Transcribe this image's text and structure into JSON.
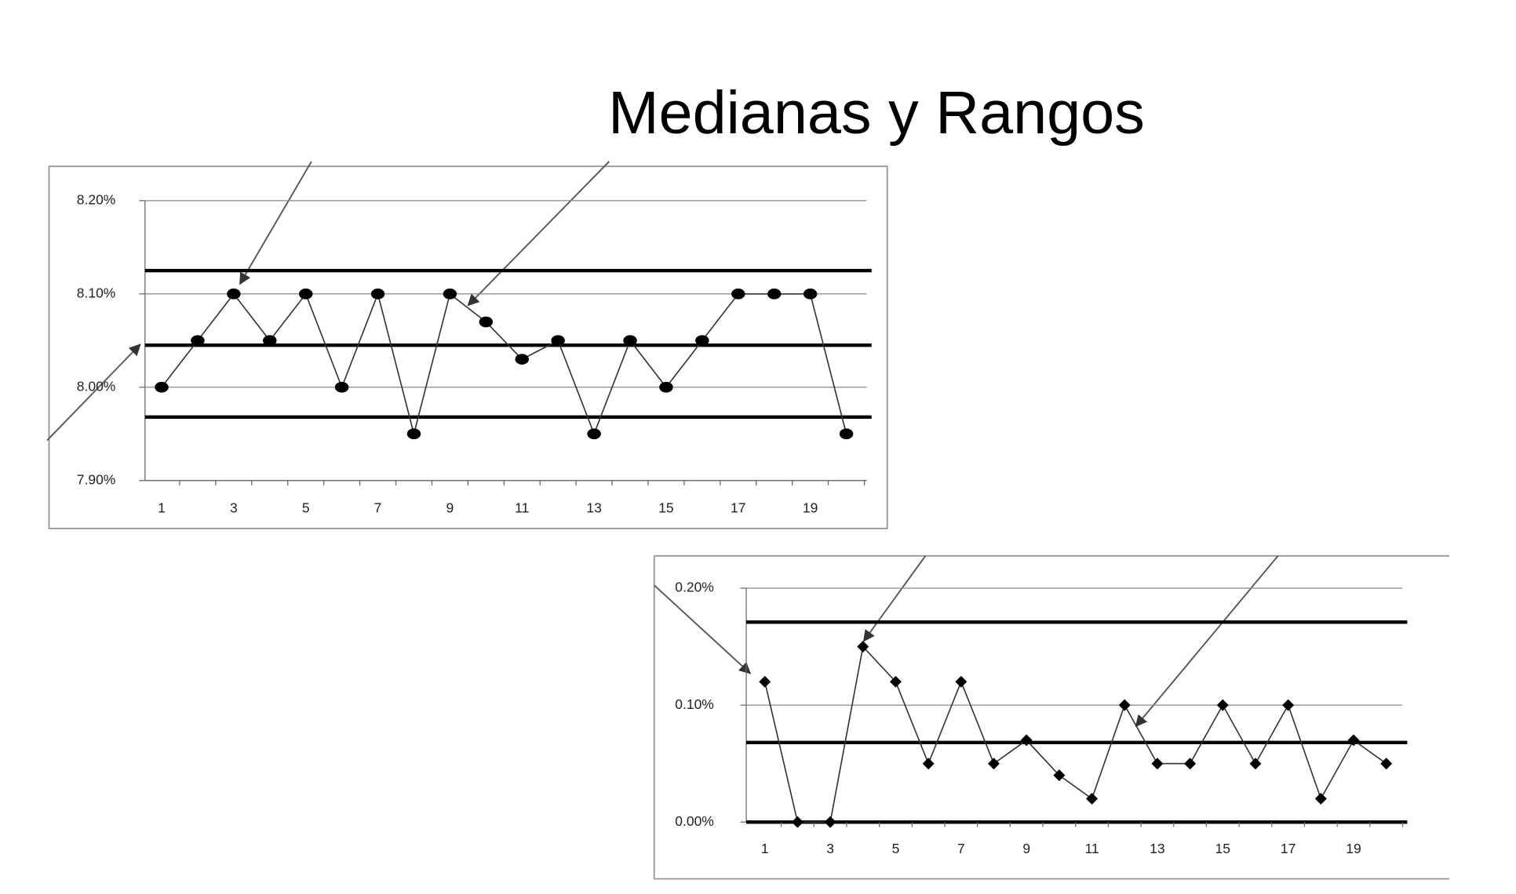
{
  "title": "Medianas y Rangos",
  "chart_data": [
    {
      "type": "line",
      "marker": "circle",
      "color": "#000000",
      "categories": [
        "1",
        null,
        "3",
        null,
        "5",
        null,
        "7",
        null,
        "9",
        null,
        "11",
        null,
        "13",
        null,
        "15",
        null,
        "17",
        null,
        "19",
        null
      ],
      "values": [
        8.0,
        8.05,
        8.1,
        8.05,
        8.1,
        8.0,
        8.1,
        7.95,
        8.1,
        8.07,
        8.03,
        8.05,
        7.95,
        8.05,
        8.0,
        8.05,
        8.1,
        8.1,
        8.1,
        7.95
      ],
      "ylim": [
        7.9,
        8.2
      ],
      "yticks": [
        {
          "value": 7.9,
          "label": "7.90%"
        },
        {
          "value": 8.0,
          "label": "8.00%"
        },
        {
          "value": 8.1,
          "label": "8.10%"
        },
        {
          "value": 8.2,
          "label": "8.20%"
        }
      ],
      "grid": true,
      "hlines": [
        8.125,
        8.045,
        7.968
      ]
    },
    {
      "type": "line",
      "marker": "diamond",
      "color": "#000000",
      "categories": [
        "1",
        null,
        "3",
        null,
        "5",
        null,
        "7",
        null,
        "9",
        null,
        "11",
        null,
        "13",
        null,
        "15",
        null,
        "17",
        null,
        "19",
        null
      ],
      "values": [
        0.12,
        0.0,
        0.0,
        0.15,
        0.12,
        0.05,
        0.12,
        0.05,
        0.07,
        0.04,
        0.02,
        0.1,
        0.05,
        0.05,
        0.1,
        0.05,
        0.1,
        0.02,
        0.07,
        0.05
      ],
      "ylim": [
        0,
        0.2
      ],
      "yticks": [
        {
          "value": 0,
          "label": "0.00%"
        },
        {
          "value": 0.1,
          "label": "0.10%"
        },
        {
          "value": 0.2,
          "label": "0.20%"
        }
      ],
      "grid": true,
      "hlines": [
        0.171,
        0.068,
        0
      ]
    }
  ]
}
